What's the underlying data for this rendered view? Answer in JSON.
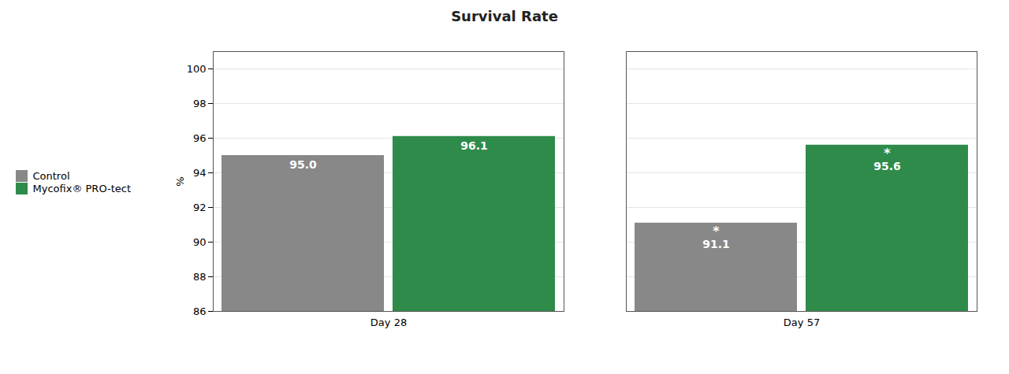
{
  "chart_data": {
    "type": "bar",
    "title": "Survival Rate",
    "categories": [
      "Day 28",
      "Day 57"
    ],
    "series": [
      {
        "name": "Control",
        "color": "#888888",
        "values": [
          95.0,
          91.1
        ],
        "value_labels": [
          "95.0",
          "91.1"
        ]
      },
      {
        "name": "Mycofix® PRO-tect",
        "color": "#2e8b4a",
        "values": [
          96.1,
          95.6
        ],
        "value_labels": [
          "96.1",
          "95.6"
        ]
      }
    ],
    "ylabel": "%",
    "ylim": [
      86,
      101
    ],
    "yticks": [
      86,
      88,
      90,
      92,
      94,
      96,
      98,
      100
    ],
    "grid": true,
    "legend": "left",
    "data_labels": true,
    "annotations": [
      {
        "text": "*",
        "category": "Day 57",
        "series": "Control"
      },
      {
        "text": "*",
        "category": "Day 57",
        "series": "Mycofix® PRO-tect"
      }
    ]
  }
}
